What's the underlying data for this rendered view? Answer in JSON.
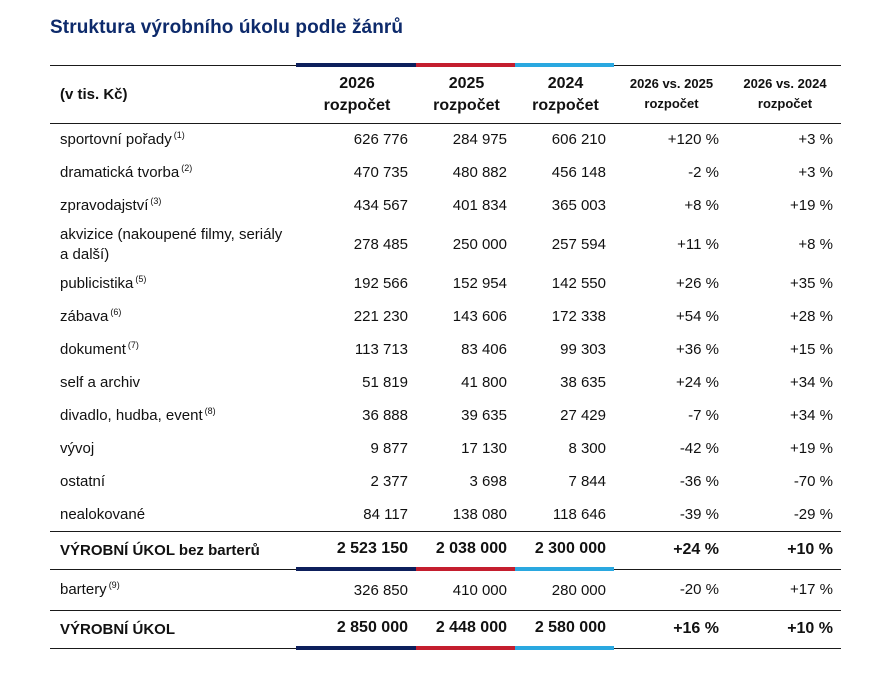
{
  "title": "Struktura výrobního úkolu podle žánrů",
  "header": {
    "unit": "(v tis. Kč)",
    "col_2026_year": "2026",
    "col_2026_sub": "rozpočet",
    "col_2025_year": "2025",
    "col_2025_sub": "rozpočet",
    "col_2024_year": "2024",
    "col_2024_sub": "rozpočet",
    "cmp1_top": "2026 vs. 2025",
    "cmp1_sub": "rozpočet",
    "cmp2_top": "2026 vs. 2024",
    "cmp2_sub": "rozpočet"
  },
  "rows": [
    {
      "name": "sportovní pořady",
      "note": "(1)",
      "v2026": "626 776",
      "v2025": "284 975",
      "v2024": "606 210",
      "d1": "+120 %",
      "d2": "+3 %"
    },
    {
      "name": "dramatická tvorba",
      "note": "(2)",
      "v2026": "470 735",
      "v2025": "480 882",
      "v2024": "456 148",
      "d1": "-2 %",
      "d2": "+3 %"
    },
    {
      "name": "zpravodajství",
      "note": "(3)",
      "v2026": "434 567",
      "v2025": "401 834",
      "v2024": "365 003",
      "d1": "+8 %",
      "d2": "+19 %"
    },
    {
      "name": "akvizice (nakoupené filmy, seriály a další)",
      "note": "",
      "v2026": "278 485",
      "v2025": "250 000",
      "v2024": "257 594",
      "d1": "+11 %",
      "d2": "+8 %"
    },
    {
      "name": "publicistika",
      "note": "(5)",
      "v2026": "192 566",
      "v2025": "152 954",
      "v2024": "142 550",
      "d1": "+26 %",
      "d2": "+35 %"
    },
    {
      "name": "zábava",
      "note": "(6)",
      "v2026": "221 230",
      "v2025": "143 606",
      "v2024": "172 338",
      "d1": "+54 %",
      "d2": "+28 %"
    },
    {
      "name": "dokument",
      "note": "(7)",
      "v2026": "113 713",
      "v2025": "83 406",
      "v2024": "99 303",
      "d1": "+36 %",
      "d2": "+15 %"
    },
    {
      "name": "self a archiv",
      "note": "",
      "v2026": "51 819",
      "v2025": "41 800",
      "v2024": "38 635",
      "d1": "+24 %",
      "d2": "+34 %"
    },
    {
      "name": "divadlo, hudba, event",
      "note": "(8)",
      "v2026": "36 888",
      "v2025": "39 635",
      "v2024": "27 429",
      "d1": "-7 %",
      "d2": "+34 %"
    },
    {
      "name": "vývoj",
      "note": "",
      "v2026": "9 877",
      "v2025": "17 130",
      "v2024": "8 300",
      "d1": "-42 %",
      "d2": "+19 %"
    },
    {
      "name": "ostatní",
      "note": "",
      "v2026": "2 377",
      "v2025": "3 698",
      "v2024": "7 844",
      "d1": "-36 %",
      "d2": "-70 %"
    },
    {
      "name": "nealokované",
      "note": "",
      "v2026": "84 117",
      "v2025": "138 080",
      "v2024": "118 646",
      "d1": "-39 %",
      "d2": "-29 %"
    }
  ],
  "subtotal": {
    "name": "VÝROBNÍ ÚKOL bez barterů",
    "v2026": "2 523 150",
    "v2025": "2 038 000",
    "v2024": "2 300 000",
    "d1": "+24 %",
    "d2": "+10 %"
  },
  "barter": {
    "name": "bartery",
    "note": "(9)",
    "v2026": "326 850",
    "v2025": "410 000",
    "v2024": "280 000",
    "d1": "-20 %",
    "d2": "+17 %"
  },
  "total": {
    "name": "VÝROBNÍ ÚKOL",
    "v2026": "2 850 000",
    "v2025": "2 448 000",
    "v2024": "2 580 000",
    "d1": "+16 %",
    "d2": "+10 %"
  },
  "colors": {
    "title": "#0d2a6b",
    "bar_2026": "#0d1f5c",
    "bar_2025": "#c41e2e",
    "bar_2024": "#2aa8e0"
  }
}
